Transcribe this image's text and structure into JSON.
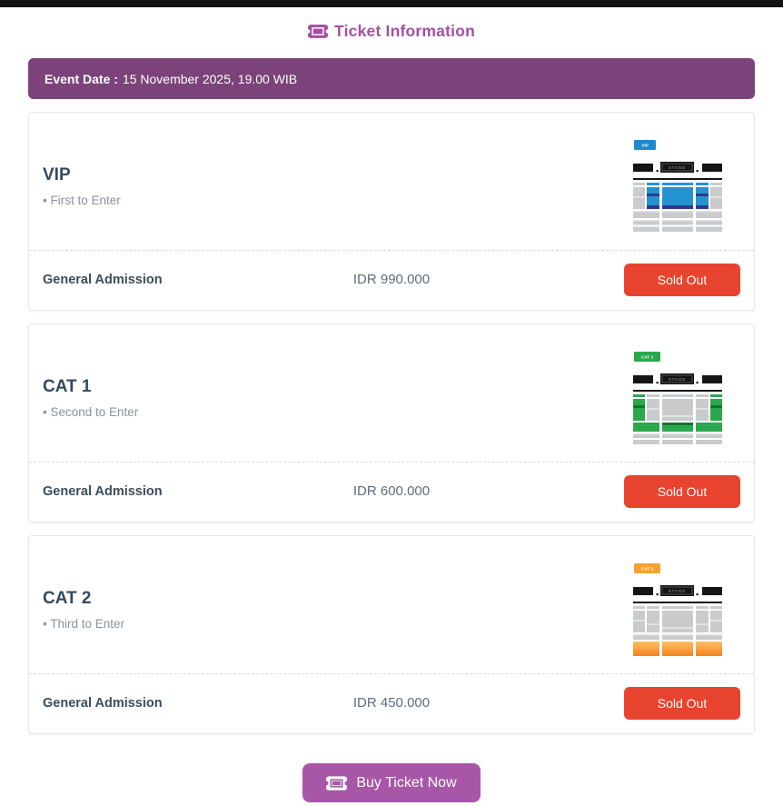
{
  "page": {
    "title": "Ticket Information",
    "event_date_label": "Event Date :",
    "event_date_value": "15 November 2025, 19.00 WIB",
    "buy_button_label": "Buy Ticket Now"
  },
  "colors": {
    "accent_purple": "#a44fa4",
    "banner_purple": "#7b4379",
    "sold_out_red": "#e8432e",
    "buy_button_purple": "#a857a8",
    "title_dark": "#34495e",
    "seat_gray": "#c9cbcd",
    "seat_gray_light": "#e0e2e4",
    "stage_black": "#151515"
  },
  "tickets": [
    {
      "name": "VIP",
      "note": "• First to Enter",
      "tier_label": "General Admission",
      "price": "IDR 990.000",
      "button_label": "Sold Out",
      "map": {
        "badge": "VIP",
        "badge_color": "#1e88d0",
        "variant": "vip",
        "highlight": "#2493d1",
        "dark": "#2d3a8c",
        "light": "#2493d1",
        "stage_label": "STAGE"
      }
    },
    {
      "name": "CAT 1",
      "note": "• Second to Enter",
      "tier_label": "General Admission",
      "price": "IDR 600.000",
      "button_label": "Sold Out",
      "map": {
        "badge": "CAT 1",
        "badge_color": "#2aa84c",
        "variant": "cat1",
        "highlight": "#2aa84c",
        "dark": "#14722f",
        "light": "#2aa84c",
        "stage_label": "STAGE"
      }
    },
    {
      "name": "CAT 2",
      "note": "• Third to Enter",
      "tier_label": "General Admission",
      "price": "IDR 450.000",
      "button_label": "Sold Out",
      "map": {
        "badge": "CAT 2",
        "badge_color": "#f6a12f",
        "variant": "cat2",
        "highlight": "#f5821f",
        "dark": "#d96c12",
        "light": "#fcc063",
        "stage_label": "STAGE"
      }
    }
  ]
}
